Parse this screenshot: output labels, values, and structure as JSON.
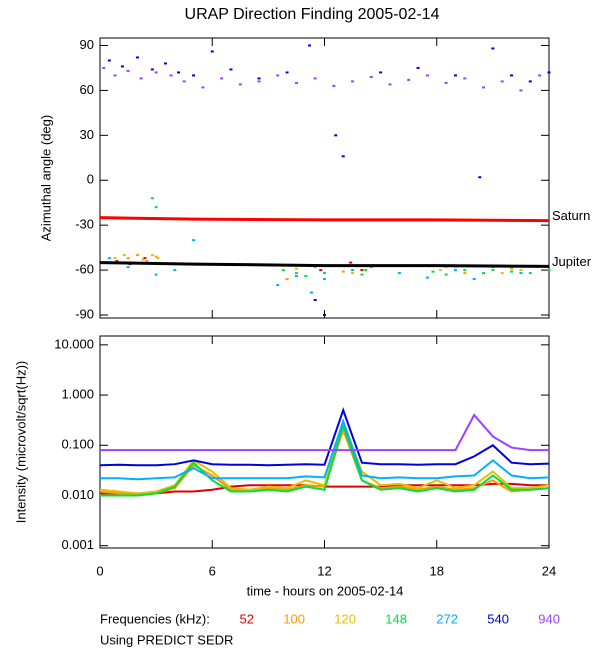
{
  "title": "URAP Direction Finding  2005-02-14",
  "footer": {
    "legend_title": "Frequencies (kHz):",
    "note": "Using PREDICT SEDR"
  },
  "chart_data": [
    {
      "type": "scatter",
      "ylabel": "Azimuthal angle (deg)",
      "xlim": [
        0,
        24
      ],
      "xticks": [
        0,
        6,
        12,
        18,
        24
      ],
      "ylim": [
        -92,
        95
      ],
      "yticks": [
        -90,
        -60,
        -30,
        0,
        30,
        60,
        90
      ],
      "series": [
        {
          "color": "#e00000",
          "x": [
            0.9,
            1.6,
            2.4,
            11.8,
            13.4,
            14
          ],
          "values": [
            -54,
            -56,
            -52,
            -60,
            -55,
            -60
          ]
        },
        {
          "color": "#ff9900",
          "x": [
            1,
            1.5,
            2,
            2.5,
            3,
            10,
            13,
            18.5,
            19.5,
            22
          ],
          "values": [
            -55,
            -52,
            -50,
            -54,
            -51,
            -66,
            -61,
            -58,
            -62,
            -59
          ]
        },
        {
          "color": "#e0c000",
          "x": [
            0.8,
            1.3,
            1.8,
            2.3,
            2.8,
            3.1,
            10.5,
            13.5,
            18.2,
            19,
            21.5,
            22.5
          ],
          "values": [
            -52,
            -50,
            -55,
            -53,
            -50,
            -52,
            -59,
            -62,
            -60,
            -58,
            -62,
            -60
          ]
        },
        {
          "color": "#00e040",
          "x": [
            2.8,
            3,
            9.8,
            10.5,
            11,
            11.5,
            12,
            13,
            14,
            14.2,
            17.8,
            18.5,
            19.5,
            20.5,
            21,
            22,
            23,
            24
          ],
          "values": [
            -12,
            -18,
            -60,
            -62,
            -64,
            -58,
            -62,
            -57,
            -63,
            -60,
            -61,
            -63,
            -60,
            -62,
            -60,
            -61,
            -62,
            -60
          ]
        },
        {
          "color": "#00b0ff",
          "x": [
            0.5,
            1.5,
            3,
            4,
            5,
            9.5,
            10.5,
            11.3,
            12,
            13.5,
            14.5,
            16,
            17.5,
            19,
            20,
            21,
            22.5
          ],
          "values": [
            -52,
            -58,
            -63,
            -60,
            -40,
            -70,
            -64,
            -75,
            -66,
            -60,
            -58,
            -62,
            -65,
            -60,
            -66,
            -58,
            -62
          ]
        },
        {
          "color": "#0000e0",
          "x": [
            0.5,
            1.2,
            2,
            2.8,
            3.5,
            4.2,
            5,
            6,
            7,
            8.5,
            10,
            11.2,
            11.5,
            12,
            12.6,
            13,
            15,
            17,
            19,
            20.3,
            21,
            22,
            23,
            24
          ],
          "values": [
            80,
            76,
            82,
            74,
            78,
            72,
            70,
            86,
            74,
            68,
            72,
            90,
            -80,
            -90,
            30,
            16,
            72,
            75,
            70,
            2,
            88,
            70,
            66,
            72
          ]
        },
        {
          "color": "#a040ff",
          "x": [
            0.2,
            0.8,
            1.5,
            2.2,
            3,
            3.8,
            4.5,
            5.5,
            6.5,
            7.5,
            8.5,
            9.5,
            10.5,
            11.5,
            12.5,
            13.5,
            14.5,
            15.5,
            16.5,
            17.5,
            18.5,
            19.5,
            20.5,
            21.5,
            22.5,
            23.5
          ],
          "values": [
            75,
            70,
            73,
            68,
            72,
            70,
            66,
            62,
            68,
            64,
            66,
            70,
            65,
            68,
            63,
            66,
            69,
            64,
            67,
            70,
            65,
            68,
            62,
            66,
            60,
            70
          ]
        }
      ],
      "reference_lines": [
        {
          "name": "Saturn",
          "color": "#ff0000",
          "x": [
            0,
            5,
            12,
            18,
            24
          ],
          "values": [
            -25,
            -26,
            -26.5,
            -26.5,
            -27
          ]
        },
        {
          "name": "Jupiter",
          "color": "#000000",
          "x": [
            0,
            5,
            12,
            18,
            24
          ],
          "values": [
            -55,
            -56,
            -57,
            -57,
            -57.5
          ]
        }
      ]
    },
    {
      "type": "line",
      "ylabel": "Intensity (microvolt/sqrt(Hz))",
      "xlabel": "time - hours on 2005-02-14",
      "log_scale": true,
      "xlim": [
        0,
        24
      ],
      "xticks": [
        0,
        6,
        12,
        18,
        24
      ],
      "ylim": [
        0.0009,
        15
      ],
      "yticks": [
        {
          "value": 0.001,
          "label": "0.001"
        },
        {
          "value": 0.01,
          "label": "0.010"
        },
        {
          "value": 0.1,
          "label": "0.100"
        },
        {
          "value": 1,
          "label": "1.000"
        },
        {
          "value": 10,
          "label": "10.000"
        }
      ],
      "x": [
        0,
        1,
        2,
        3,
        4,
        5,
        6,
        7,
        8,
        9,
        10,
        11,
        12,
        13,
        14,
        15,
        16,
        17,
        18,
        19,
        20,
        21,
        22,
        23,
        24
      ],
      "series": [
        {
          "name": "52",
          "color": "#e00000",
          "values": [
            0.011,
            0.011,
            0.011,
            0.011,
            0.012,
            0.012,
            0.013,
            0.015,
            0.016,
            0.016,
            0.016,
            0.016,
            0.015,
            0.015,
            0.015,
            0.015,
            0.016,
            0.016,
            0.016,
            0.016,
            0.016,
            0.017,
            0.017,
            0.016,
            0.016
          ]
        },
        {
          "name": "100",
          "color": "#ff9900",
          "values": [
            0.012,
            0.011,
            0.01,
            0.011,
            0.014,
            0.04,
            0.025,
            0.013,
            0.013,
            0.014,
            0.013,
            0.016,
            0.015,
            0.2,
            0.02,
            0.014,
            0.015,
            0.013,
            0.015,
            0.013,
            0.014,
            0.02,
            0.012,
            0.013,
            0.014
          ]
        },
        {
          "name": "120",
          "color": "#e0c000",
          "values": [
            0.013,
            0.012,
            0.011,
            0.012,
            0.016,
            0.05,
            0.03,
            0.014,
            0.013,
            0.015,
            0.014,
            0.02,
            0.016,
            0.3,
            0.03,
            0.016,
            0.017,
            0.014,
            0.02,
            0.014,
            0.016,
            0.03,
            0.014,
            0.014,
            0.016
          ]
        },
        {
          "name": "148",
          "color": "#00e040",
          "values": [
            0.01,
            0.01,
            0.01,
            0.011,
            0.015,
            0.045,
            0.02,
            0.012,
            0.012,
            0.013,
            0.012,
            0.015,
            0.013,
            0.25,
            0.02,
            0.013,
            0.014,
            0.012,
            0.014,
            0.012,
            0.013,
            0.025,
            0.013,
            0.013,
            0.014
          ]
        },
        {
          "name": "272",
          "color": "#00b0ff",
          "values": [
            0.022,
            0.022,
            0.021,
            0.022,
            0.023,
            0.035,
            0.022,
            0.022,
            0.022,
            0.022,
            0.022,
            0.024,
            0.023,
            0.3,
            0.025,
            0.022,
            0.023,
            0.022,
            0.022,
            0.024,
            0.025,
            0.05,
            0.025,
            0.022,
            0.023
          ]
        },
        {
          "name": "540",
          "color": "#0000e0",
          "values": [
            0.04,
            0.041,
            0.04,
            0.04,
            0.042,
            0.05,
            0.042,
            0.041,
            0.041,
            0.04,
            0.041,
            0.042,
            0.041,
            0.5,
            0.045,
            0.042,
            0.042,
            0.041,
            0.042,
            0.042,
            0.06,
            0.1,
            0.045,
            0.042,
            0.043
          ]
        },
        {
          "name": "940",
          "color": "#a040ff",
          "values": [
            0.08,
            0.08,
            0.08,
            0.08,
            0.08,
            0.08,
            0.08,
            0.08,
            0.08,
            0.08,
            0.08,
            0.08,
            0.08,
            0.08,
            0.08,
            0.08,
            0.08,
            0.08,
            0.08,
            0.08,
            0.4,
            0.15,
            0.09,
            0.08,
            0.08
          ]
        }
      ]
    }
  ]
}
